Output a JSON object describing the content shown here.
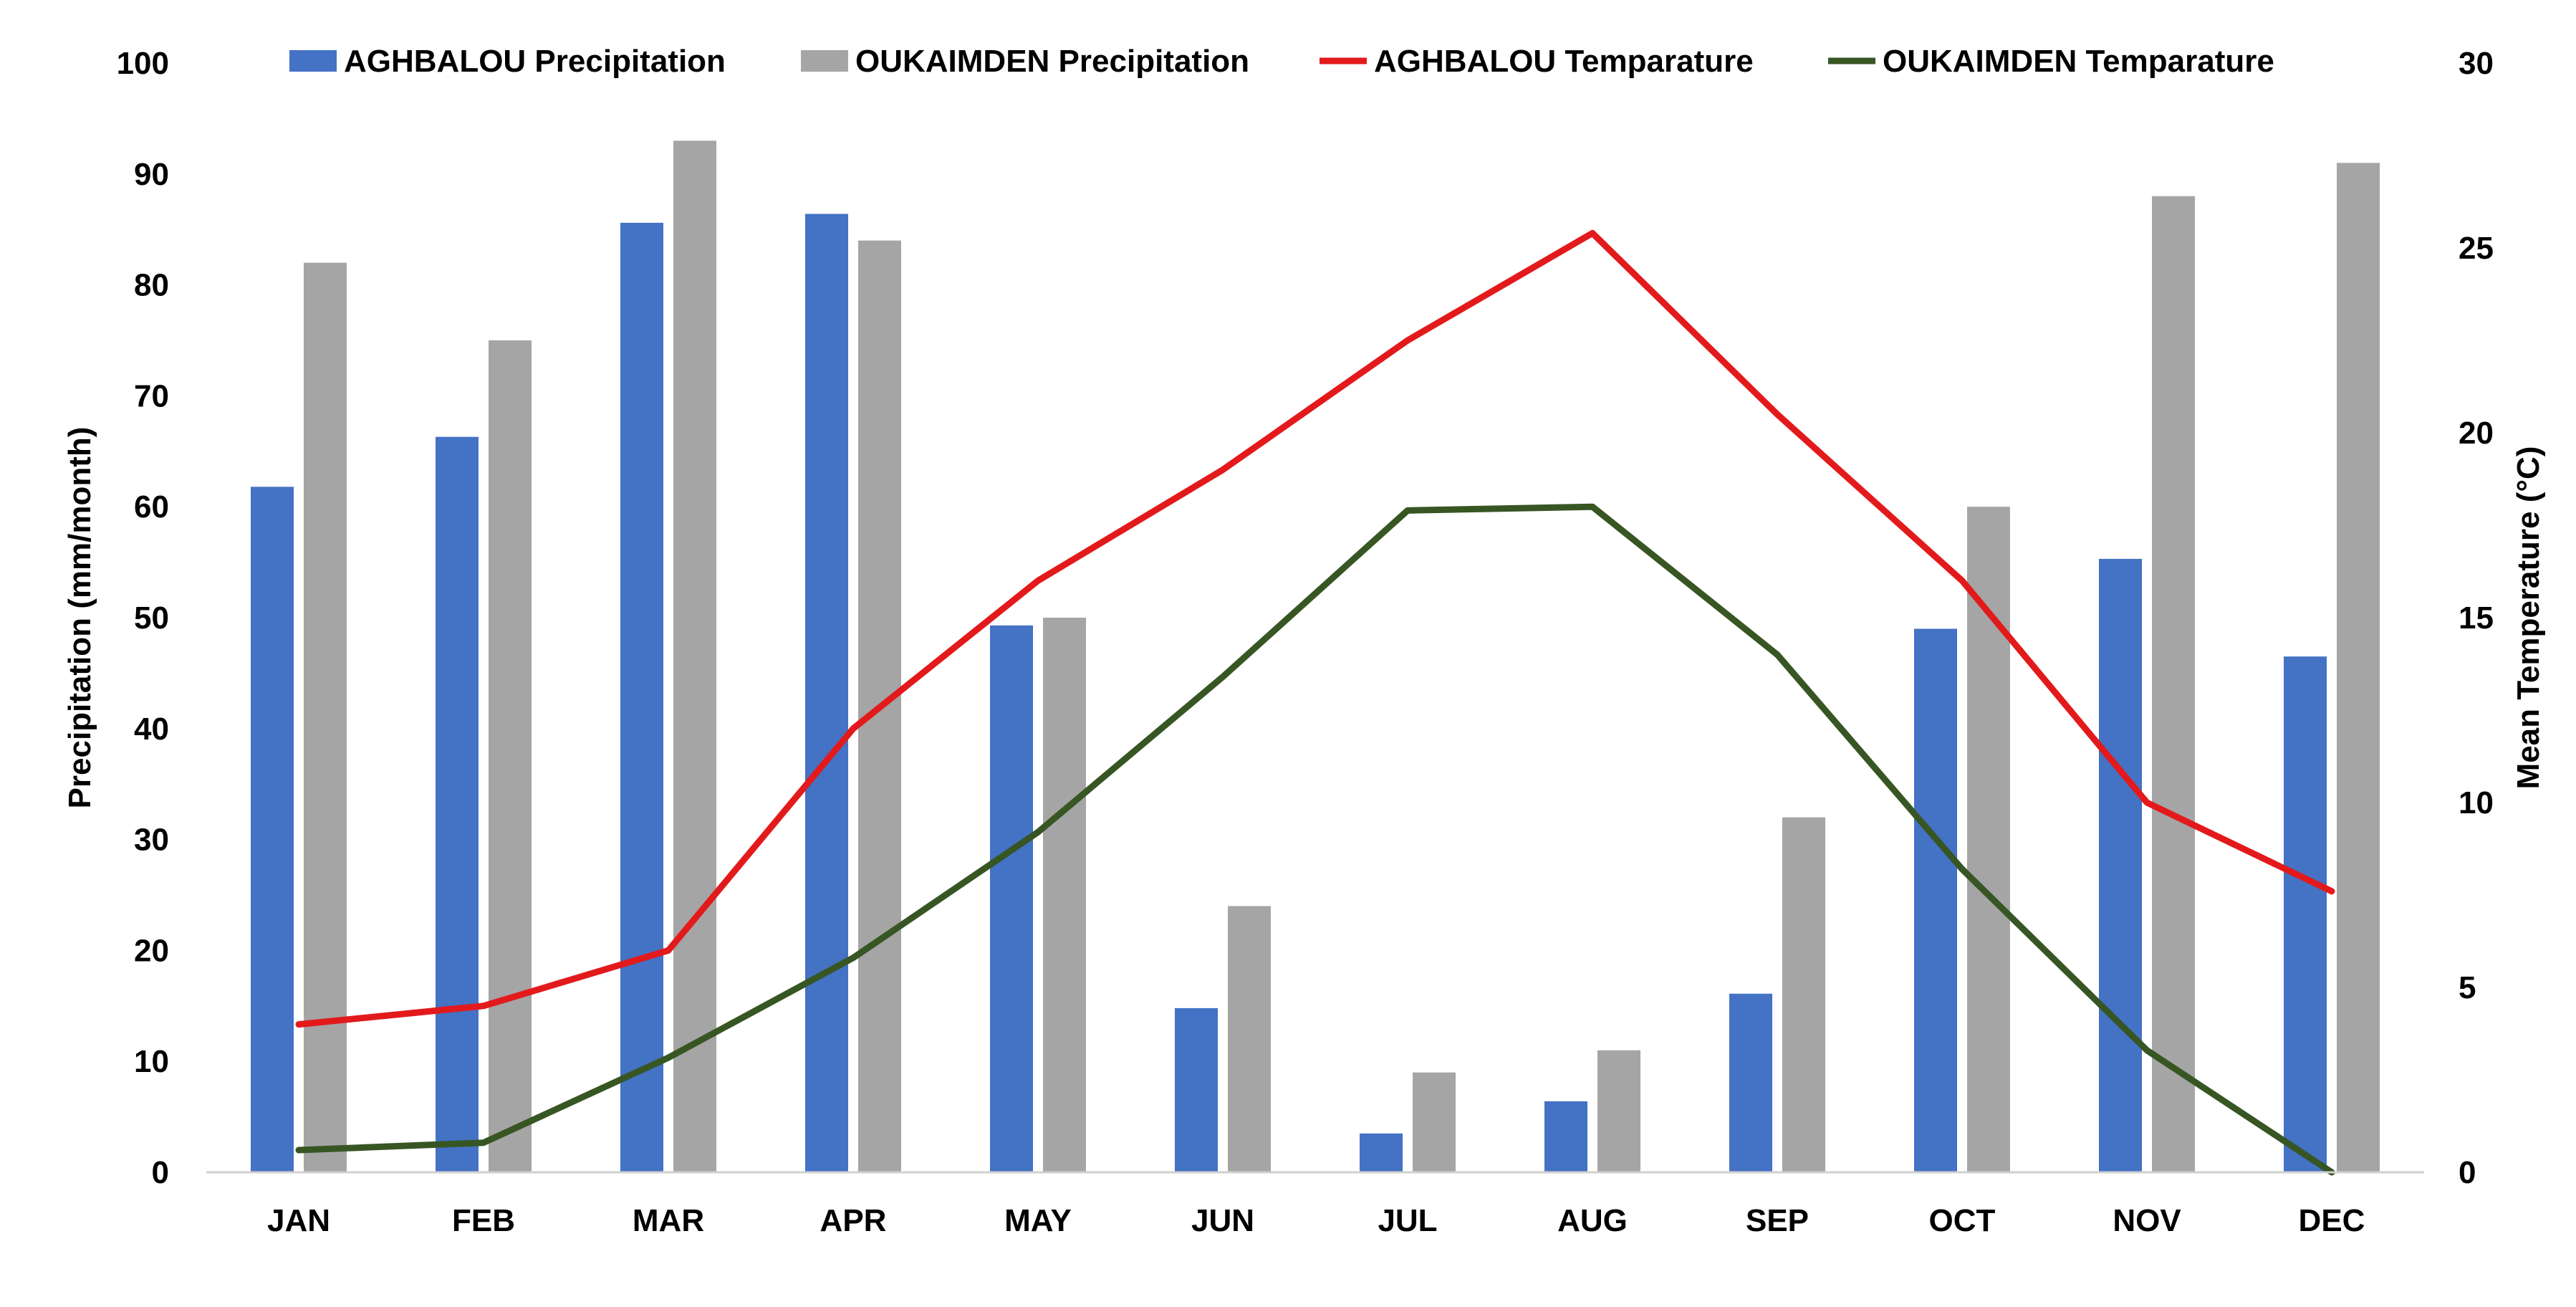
{
  "chart_data": {
    "type": "bar",
    "title": "",
    "categories": [
      "JAN",
      "FEB",
      "MAR",
      "APR",
      "MAY",
      "JUN",
      "JUL",
      "AUG",
      "SEP",
      "OCT",
      "NOV",
      "DEC"
    ],
    "series": [
      {
        "name": "AGHBALOU  Precipitation",
        "kind": "bar",
        "axis": "left",
        "color": "#4472C4",
        "values": [
          61.8,
          66.3,
          85.6,
          86.4,
          49.3,
          14.8,
          3.5,
          6.4,
          16.1,
          49.0,
          55.3,
          46.5
        ]
      },
      {
        "name": "OUKAIMDEN Precipitation",
        "kind": "bar",
        "axis": "left",
        "color": "#A5A5A5",
        "values": [
          82,
          75,
          93,
          84,
          50,
          24,
          9,
          11,
          32,
          60,
          88,
          91
        ]
      },
      {
        "name": "AGHBALOU  Temparature",
        "kind": "line",
        "axis": "right",
        "color": "#E31A1C",
        "values": [
          4.0,
          4.5,
          6.0,
          12.0,
          16.0,
          19.0,
          22.5,
          25.4,
          20.5,
          16.0,
          10.0,
          7.6
        ]
      },
      {
        "name": "OUKAIMDEN Temparature",
        "kind": "line",
        "axis": "right",
        "color": "#375623",
        "values": [
          0.6,
          0.8,
          3.1,
          5.8,
          9.2,
          13.4,
          17.9,
          18.0,
          14.0,
          8.2,
          3.3,
          0.0
        ]
      }
    ],
    "ylabel": "Precipitation (mm/month)",
    "y2label": "Mean Temperature (°C)",
    "ylim": [
      0,
      100
    ],
    "y2lim": [
      0,
      30
    ],
    "yticks": [
      "0",
      "10",
      "20",
      "30",
      "40",
      "50",
      "60",
      "70",
      "80",
      "90",
      "100"
    ],
    "y2ticks": [
      "0",
      "5",
      "10",
      "15",
      "20",
      "25",
      "30"
    ],
    "legend_position": "top"
  }
}
